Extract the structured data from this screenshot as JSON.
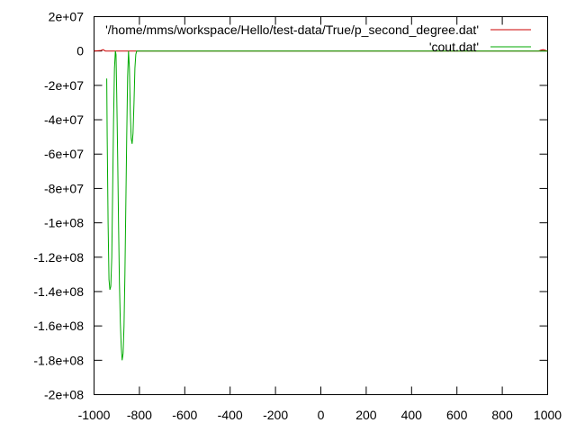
{
  "chart_data": {
    "type": "line",
    "title": "",
    "xlabel": "",
    "ylabel": "",
    "xlim": [
      -1000,
      1000
    ],
    "ylim": [
      -200000000,
      20000000
    ],
    "grid": false,
    "legend_position": "top-right",
    "x_ticks": [
      {
        "value": -1000,
        "label": "-1000"
      },
      {
        "value": -800,
        "label": "-800"
      },
      {
        "value": -600,
        "label": "-600"
      },
      {
        "value": -400,
        "label": "-400"
      },
      {
        "value": -200,
        "label": "-200"
      },
      {
        "value": 0,
        "label": "0"
      },
      {
        "value": 200,
        "label": "200"
      },
      {
        "value": 400,
        "label": "400"
      },
      {
        "value": 600,
        "label": "600"
      },
      {
        "value": 800,
        "label": "800"
      },
      {
        "value": 1000,
        "label": "1000"
      }
    ],
    "y_ticks": [
      {
        "value": 20000000,
        "label": "2e+07"
      },
      {
        "value": 0,
        "label": "0"
      },
      {
        "value": -20000000,
        "label": "-2e+07"
      },
      {
        "value": -40000000,
        "label": "-4e+07"
      },
      {
        "value": -60000000,
        "label": "-6e+07"
      },
      {
        "value": -80000000,
        "label": "-8e+07"
      },
      {
        "value": -100000000,
        "label": "-1e+08"
      },
      {
        "value": -120000000,
        "label": "-1.2e+08"
      },
      {
        "value": -140000000,
        "label": "-1.4e+08"
      },
      {
        "value": -160000000,
        "label": "-1.6e+08"
      },
      {
        "value": -180000000,
        "label": "-1.8e+08"
      },
      {
        "value": -200000000,
        "label": "-2e+08"
      }
    ],
    "series": [
      {
        "name": "'/home/mms/workspace/Hello/test-data/True/p_second_degree.dat'",
        "color": "#cc0000",
        "x": [
          -1000,
          -970,
          -960,
          -950,
          -900,
          -800,
          -600,
          -400,
          -200,
          0,
          200,
          400,
          600,
          800,
          960,
          970,
          980,
          1000
        ],
        "y": [
          0,
          300000,
          800000,
          0,
          0,
          0,
          0,
          0,
          0,
          0,
          0,
          0,
          0,
          0,
          0,
          500000,
          800000,
          0
        ]
      },
      {
        "name": "'cout.dat'",
        "color": "#00aa00",
        "x": [
          -944,
          -942,
          -938,
          -934,
          -930,
          -926,
          -922,
          -918,
          -914,
          -910,
          -906,
          -903,
          -900,
          -896,
          -892,
          -888,
          -884,
          -880,
          -876,
          -872,
          -868,
          -864,
          -860,
          -856,
          -852,
          -848,
          -844,
          -840,
          -836,
          -832,
          -828,
          -824,
          -820,
          -816,
          -812,
          -808,
          -804,
          -800,
          -796,
          -792,
          -788,
          -780,
          -760,
          -700,
          -640,
          -620,
          -600,
          -400,
          -200,
          0,
          200,
          400,
          600,
          800,
          1000
        ],
        "y": [
          -16000000,
          -50000000,
          -100000000,
          -133000000,
          -139000000,
          -137000000,
          -120000000,
          -80000000,
          -40000000,
          -10000000,
          0,
          -2000000,
          -25000000,
          -60000000,
          -100000000,
          -135000000,
          -158000000,
          -172000000,
          -180000000,
          -176000000,
          -160000000,
          -130000000,
          -90000000,
          -50000000,
          -15000000,
          0,
          -10000000,
          -36000000,
          -51000000,
          -54000000,
          -48000000,
          -30000000,
          -10000000,
          -2000000,
          0,
          0,
          0,
          0,
          0,
          0,
          0,
          0,
          0,
          0,
          0,
          0,
          0,
          0,
          0,
          0,
          0,
          0,
          0,
          0,
          0
        ]
      }
    ]
  }
}
